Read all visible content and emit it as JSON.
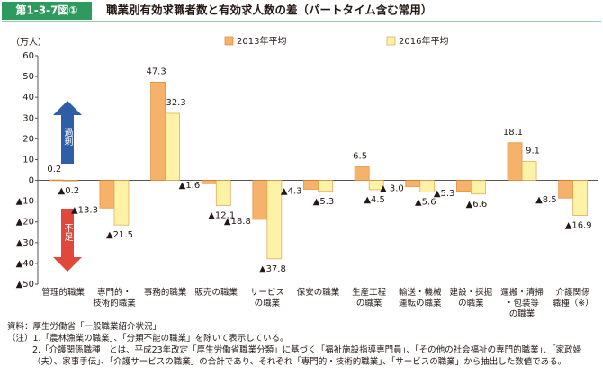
{
  "chart_data": {
    "type": "bar",
    "figure_label": "第1-3-7図①",
    "title": "職業別有効求職者数と有効求人数の差（パートタイム含む常用）",
    "y_unit": "（万人）",
    "categories": [
      "管理的職業",
      "専門的・\n技術的職業",
      "事務的職業",
      "販売の職業",
      "サービス\nの職業",
      "保安の職業",
      "生産工程\nの職業",
      "輸送・機械\n運転の職業",
      "建設・採掘\nの職業",
      "運搬・清掃\n・包装等\nの職業",
      "介護関係\n職種（※）"
    ],
    "series": [
      {
        "name": "2013年平均",
        "color": "#f6b26b",
        "stroke": "#e08a2c",
        "values": [
          0.2,
          -13.3,
          47.3,
          -1.6,
          -18.8,
          -4.3,
          6.5,
          -3.0,
          -5.3,
          18.1,
          -8.5
        ],
        "value_labels": [
          "0.2",
          "▲13.3",
          "47.3",
          "▲1.6",
          "▲18.8",
          "▲4.3",
          "6.5",
          "▲ 3.0",
          "▲5.3",
          "18.1",
          "▲8.5"
        ]
      },
      {
        "name": "2016年平均",
        "color": "#fdf2a6",
        "stroke": "#e0a24a",
        "values": [
          -0.2,
          -21.5,
          32.3,
          -12.1,
          -37.8,
          -5.3,
          -4.5,
          -5.6,
          -6.6,
          9.1,
          -16.9
        ],
        "value_labels": [
          "▲0.2",
          "▲21.5",
          "32.3",
          "▲12.1",
          "▲37.8",
          "▲5.3",
          "▲4.5",
          "▲5.6",
          "▲6.6",
          "9.1",
          "▲16.9"
        ]
      }
    ],
    "ylim": [
      -50,
      60
    ],
    "yticks": [
      {
        "value": -50,
        "label": "▲50"
      },
      {
        "value": -40,
        "label": "▲40"
      },
      {
        "value": -30,
        "label": "▲30"
      },
      {
        "value": -20,
        "label": "▲20"
      },
      {
        "value": -10,
        "label": "▲10"
      },
      0,
      10,
      20,
      30,
      40,
      50,
      60
    ],
    "annotations": [
      "過剰",
      "不足"
    ],
    "source": "資料：厚生労働省「一般職業紹介状況」",
    "notes": [
      "（注）1.「農林漁業の職業」、「分類不能の職業」を除いて表示している。",
      "2.「介護関係職種」とは、平成23年改定「厚生労働省職業分類」に基づく「福祉施設指導専門員」、「その他の社会福祉の専門的職業」、「家政婦（夫）、家事手伝」、「介護サービスの職業」の合計であり、それぞれ「専門的・技術的職業」、「サービスの職業」から抽出した数値である。"
    ]
  }
}
